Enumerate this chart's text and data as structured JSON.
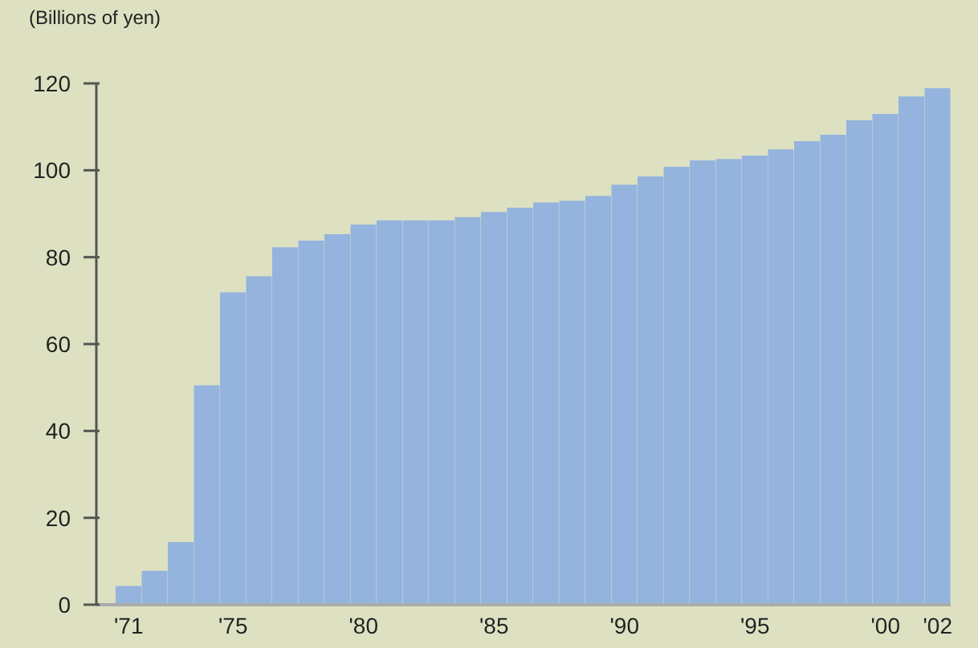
{
  "chart_data": {
    "type": "bar",
    "ylabel": "(Billions of yen)",
    "categories": [
      "'71",
      null,
      null,
      null,
      "'75",
      null,
      null,
      null,
      null,
      "'80",
      null,
      null,
      null,
      null,
      "'85",
      null,
      null,
      null,
      null,
      "'90",
      null,
      null,
      null,
      null,
      "'95",
      null,
      null,
      null,
      null,
      "'00",
      null,
      "'02"
    ],
    "values": [
      4.3,
      7.8,
      14.4,
      50.5,
      71.9,
      75.6,
      82.3,
      83.8,
      85.3,
      87.5,
      88.5,
      88.5,
      88.5,
      89.2,
      90.4,
      91.4,
      92.6,
      93.0,
      94.1,
      96.7,
      98.6,
      100.8,
      102.3,
      102.6,
      103.4,
      104.8,
      106.7,
      108.2,
      111.5,
      113.0,
      117.0,
      118.9
    ],
    "color": "#94b4de",
    "ylim": [
      0,
      120
    ],
    "yticks": [
      0,
      20,
      40,
      60,
      80,
      100,
      120
    ],
    "grid": false,
    "legend": false
  }
}
